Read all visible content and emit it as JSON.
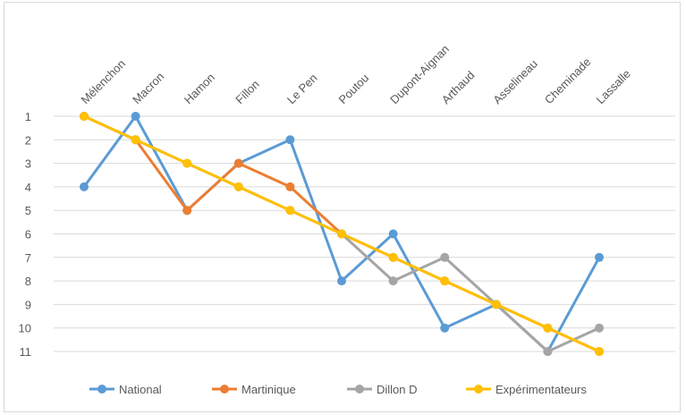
{
  "chart_data": {
    "type": "line",
    "title": "",
    "xlabel": "",
    "ylabel": "",
    "categories": [
      "Mélenchon",
      "Macron",
      "Hamon",
      "Fillon",
      "Le Pen",
      "Poutou",
      "Dupont-Aignan",
      "Arthaud",
      "Asselineau",
      "Cheminade",
      "Lassalle"
    ],
    "y_ticks": [
      "1",
      "2",
      "3",
      "4",
      "5",
      "6",
      "7",
      "8",
      "9",
      "10",
      "11"
    ],
    "ylim": [
      1,
      11
    ],
    "y_reversed": true,
    "grid": true,
    "legend_position": "bottom",
    "series": [
      {
        "name": "National",
        "color": "#5b9bd5",
        "values": [
          4,
          1,
          5,
          3,
          2,
          8,
          6,
          10,
          9,
          11,
          7
        ]
      },
      {
        "name": "Martinique",
        "color": "#ed7d31",
        "values": [
          1,
          2,
          5,
          3,
          4,
          6,
          7,
          8,
          9,
          10,
          11
        ]
      },
      {
        "name": "Dillon D",
        "color": "#a5a5a5",
        "values": [
          1,
          2,
          3,
          4,
          5,
          6,
          8,
          7,
          9,
          11,
          10
        ]
      },
      {
        "name": "Expérimentateurs",
        "color": "#ffc000",
        "values": [
          1,
          2,
          3,
          4,
          5,
          6,
          7,
          8,
          9,
          10,
          11
        ]
      }
    ]
  }
}
